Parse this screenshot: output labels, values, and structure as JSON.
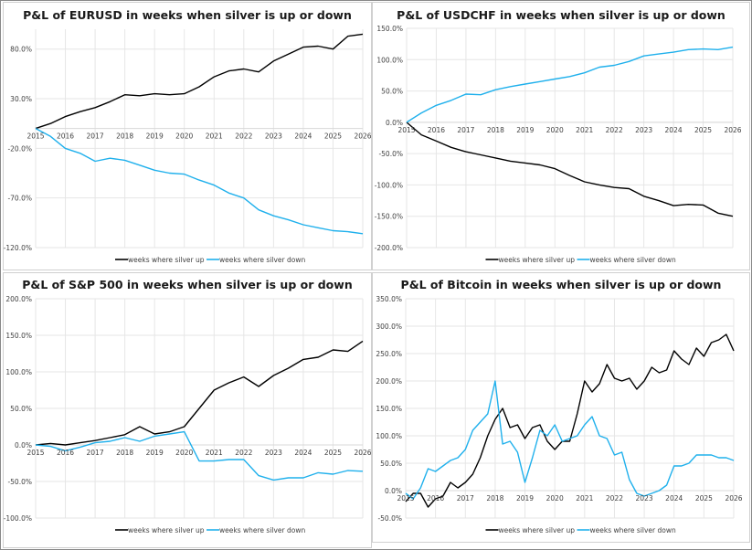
{
  "colors": {
    "up": "#000000",
    "down": "#1fb0ec",
    "grid": "#e6e6e6",
    "text": "#404040"
  },
  "legend": {
    "up": "weeks where silver up",
    "down": "weeks where silver down",
    "placement": "bottom"
  },
  "chart_data": [
    {
      "type": "line",
      "title": "P&L of EURUSD in weeks when silver is up or down",
      "x_ticks": [
        "2015",
        "2016",
        "2017",
        "2018",
        "2019",
        "2020",
        "2021",
        "2022",
        "2023",
        "2024",
        "2025",
        "2026"
      ],
      "xlim": [
        2015,
        2026
      ],
      "ylim": [
        -120,
        100
      ],
      "y_ticks": [
        80,
        30,
        -20,
        -70,
        -120
      ],
      "y_tick_labels": [
        "80.0%",
        "30.0%",
        "-20.0%",
        "-70.0%",
        "-120.0%"
      ],
      "grid": true,
      "x_step": 0.5,
      "series": [
        {
          "name": "weeks where silver up",
          "values": [
            0,
            5,
            12,
            17,
            21,
            27,
            34,
            33,
            35,
            34,
            35,
            42,
            52,
            58,
            60,
            57,
            68,
            75,
            82,
            83,
            80,
            93,
            95
          ]
        },
        {
          "name": "weeks where silver down",
          "values": [
            0,
            -8,
            -20,
            -25,
            -33,
            -30,
            -32,
            -37,
            -42,
            -45,
            -46,
            -52,
            -57,
            -65,
            -70,
            -82,
            -88,
            -92,
            -97,
            -100,
            -103,
            -104,
            -106
          ]
        }
      ]
    },
    {
      "type": "line",
      "title": "P&L of USDCHF in weeks when silver is up or down",
      "x_ticks": [
        "2015",
        "2016",
        "2017",
        "2018",
        "2019",
        "2020",
        "2021",
        "2022",
        "2023",
        "2024",
        "2025",
        "2026"
      ],
      "xlim": [
        2015,
        2026
      ],
      "ylim": [
        -200,
        150
      ],
      "y_ticks": [
        150,
        100,
        50,
        0,
        -50,
        -100,
        -150,
        -200
      ],
      "y_tick_labels": [
        "150.0%",
        "100.0%",
        "50.0%",
        "0.0%",
        "-50.0%",
        "-100.0%",
        "-150.0%",
        "-200.0%"
      ],
      "grid": true,
      "x_step": 0.5,
      "series": [
        {
          "name": "weeks where silver up",
          "values": [
            0,
            -20,
            -30,
            -40,
            -47,
            -52,
            -57,
            -62,
            -65,
            -68,
            -74,
            -85,
            -95,
            -100,
            -104,
            -106,
            -118,
            -125,
            -133,
            -131,
            -132,
            -145,
            -150
          ]
        },
        {
          "name": "weeks where silver down",
          "values": [
            0,
            15,
            27,
            35,
            45,
            44,
            52,
            57,
            61,
            65,
            69,
            73,
            79,
            88,
            91,
            97,
            106,
            109,
            112,
            116,
            117,
            116,
            120
          ]
        }
      ]
    },
    {
      "type": "line",
      "title": "P&L of S&P 500 in weeks when silver is up or down",
      "x_ticks": [
        "2015",
        "2016",
        "2017",
        "2018",
        "2019",
        "2020",
        "2021",
        "2022",
        "2023",
        "2024",
        "2025",
        "2026"
      ],
      "xlim": [
        2015,
        2026
      ],
      "ylim": [
        -100,
        200
      ],
      "y_ticks": [
        200,
        150,
        100,
        50,
        0,
        -50,
        -100
      ],
      "y_tick_labels": [
        "200.0%",
        "150.0%",
        "100.0%",
        "50.0%",
        "0.0%",
        "-50.0%",
        "-100.0%"
      ],
      "grid": true,
      "x_step": 0.5,
      "series": [
        {
          "name": "weeks where silver up",
          "values": [
            0,
            2,
            0,
            3,
            6,
            10,
            14,
            25,
            15,
            18,
            25,
            50,
            75,
            85,
            93,
            80,
            95,
            105,
            117,
            120,
            130,
            128,
            142
          ]
        },
        {
          "name": "weeks where silver down",
          "values": [
            0,
            -2,
            -8,
            -3,
            3,
            5,
            10,
            5,
            12,
            15,
            18,
            -22,
            -22,
            -20,
            -20,
            -42,
            -48,
            -45,
            -45,
            -38,
            -40,
            -35,
            -36
          ]
        }
      ]
    },
    {
      "type": "line",
      "title": "P&L of Bitcoin in weeks when silver is up or down",
      "x_ticks": [
        "2015",
        "2016",
        "2017",
        "2018",
        "2019",
        "2020",
        "2021",
        "2022",
        "2023",
        "2024",
        "2025",
        "2026"
      ],
      "xlim": [
        2015,
        2026
      ],
      "ylim": [
        -50,
        350
      ],
      "y_ticks": [
        350,
        300,
        250,
        200,
        150,
        100,
        50,
        0,
        -50
      ],
      "y_tick_labels": [
        "350.0%",
        "300.0%",
        "250.0%",
        "200.0%",
        "150.0%",
        "100.0%",
        "50.0%",
        "0.0%",
        "-50.0%"
      ],
      "grid": true,
      "x_step": 0.25,
      "series": [
        {
          "name": "weeks where silver up",
          "values": [
            -20,
            -5,
            -5,
            -30,
            -15,
            -10,
            15,
            5,
            15,
            30,
            60,
            100,
            130,
            150,
            115,
            120,
            95,
            115,
            120,
            90,
            75,
            90,
            90,
            140,
            200,
            180,
            195,
            230,
            205,
            200,
            205,
            185,
            200,
            225,
            215,
            220,
            255,
            240,
            230,
            260,
            245,
            270,
            275,
            285,
            255
          ]
        },
        {
          "name": "weeks where silver down",
          "values": [
            -5,
            -15,
            5,
            40,
            35,
            45,
            55,
            60,
            75,
            110,
            125,
            140,
            200,
            85,
            90,
            70,
            15,
            60,
            110,
            100,
            120,
            90,
            95,
            100,
            120,
            135,
            100,
            95,
            65,
            70,
            20,
            -5,
            -10,
            -5,
            0,
            10,
            45,
            45,
            50,
            65,
            65,
            65,
            60,
            60,
            55
          ]
        }
      ]
    }
  ]
}
